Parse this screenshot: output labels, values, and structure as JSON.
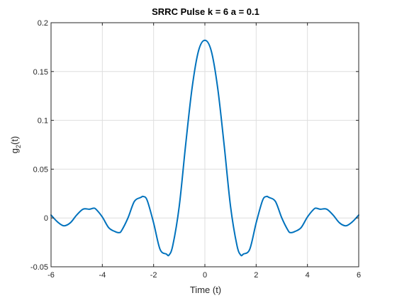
{
  "chart_data": {
    "type": "line",
    "title": "SRRC Pulse k = 6  a = 0.1",
    "xlabel": "Time (t)",
    "ylabel": {
      "base": "g",
      "subscript": "2",
      "suffix": "(t)"
    },
    "xlim": [
      -6,
      6
    ],
    "ylim": [
      -0.05,
      0.2
    ],
    "xticks": [
      -6,
      -4,
      -2,
      0,
      2,
      4,
      6
    ],
    "xtick_labels": [
      "-6",
      "-4",
      "-2",
      "0",
      "2",
      "4",
      "6"
    ],
    "yticks": [
      -0.05,
      0,
      0.05,
      0.1,
      0.15,
      0.2
    ],
    "ytick_labels": [
      "-0.05",
      "0",
      "0.05",
      "0.1",
      "0.15",
      "0.2"
    ],
    "grid": true,
    "legend": "none",
    "line_color": "#0072BD",
    "series": [
      {
        "x": [
          -6.0,
          -5.75,
          -5.5,
          -5.25,
          -5.0,
          -4.75,
          -4.5,
          -4.35,
          -4.25,
          -4.0,
          -3.75,
          -3.5,
          -3.35,
          -3.25,
          -3.0,
          -2.75,
          -2.5,
          -2.4,
          -2.25,
          -2.0,
          -1.75,
          -1.5,
          -1.4,
          -1.25,
          -1.0,
          -0.75,
          -0.5,
          -0.25,
          0.0,
          0.25,
          0.5,
          0.75,
          1.0,
          1.25,
          1.4,
          1.5,
          1.75,
          2.0,
          2.25,
          2.4,
          2.5,
          2.75,
          3.0,
          3.25,
          3.35,
          3.5,
          3.75,
          4.0,
          4.25,
          4.35,
          4.5,
          4.75,
          5.0,
          5.25,
          5.5,
          5.75,
          6.0
        ],
        "y": [
          0.003,
          -0.004,
          -0.008,
          -0.005,
          0.003,
          0.009,
          0.009,
          0.01,
          0.009,
          0.001,
          -0.01,
          -0.014,
          -0.015,
          -0.013,
          0.0,
          0.017,
          0.021,
          0.022,
          0.018,
          -0.005,
          -0.032,
          -0.037,
          -0.038,
          -0.028,
          0.012,
          0.075,
          0.133,
          0.171,
          0.182,
          0.171,
          0.133,
          0.075,
          0.012,
          -0.028,
          -0.038,
          -0.037,
          -0.032,
          -0.005,
          0.018,
          0.022,
          0.021,
          0.017,
          0.0,
          -0.013,
          -0.015,
          -0.014,
          -0.01,
          0.001,
          0.009,
          0.01,
          0.009,
          0.009,
          0.003,
          -0.005,
          -0.008,
          -0.004,
          0.003
        ]
      }
    ]
  }
}
